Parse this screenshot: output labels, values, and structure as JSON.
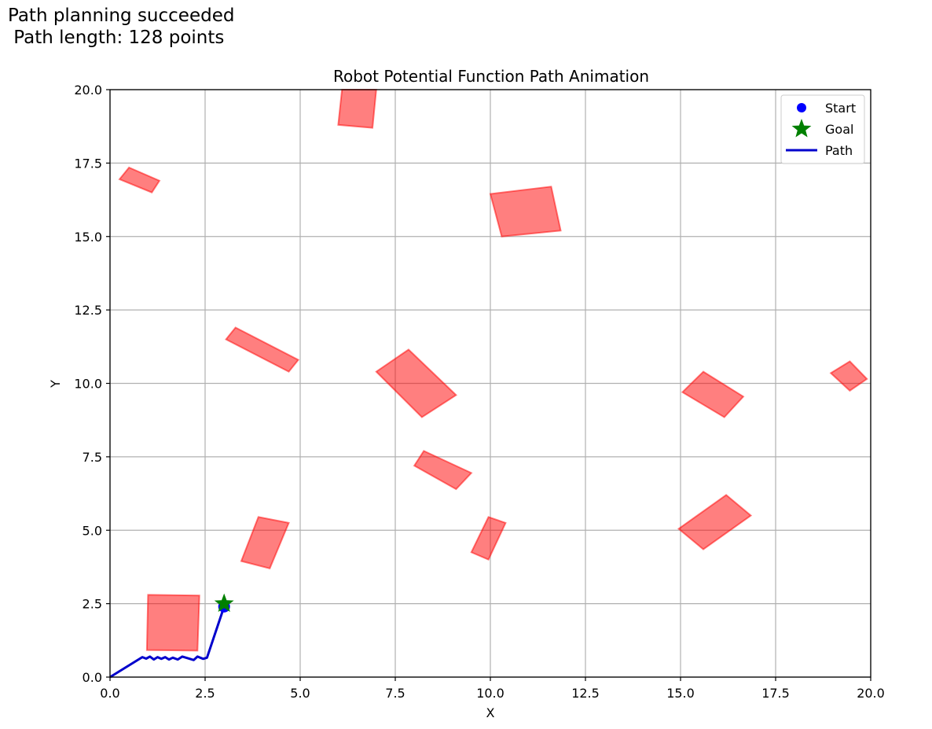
{
  "status": {
    "line1": "Path planning succeeded",
    "line2": " Path length: 128 points"
  },
  "chart_data": {
    "type": "scatter",
    "title": "Robot Potential Function Path Animation",
    "xlabel": "X",
    "ylabel": "Y",
    "xlim": [
      0,
      20
    ],
    "ylim": [
      0,
      20
    ],
    "grid": true,
    "legend_position": "top-right",
    "x_ticks": [
      "0.0",
      "2.5",
      "5.0",
      "7.5",
      "10.0",
      "12.5",
      "15.0",
      "17.5",
      "20.0"
    ],
    "y_ticks": [
      "0.0",
      "2.5",
      "5.0",
      "7.5",
      "10.0",
      "12.5",
      "15.0",
      "17.5",
      "20.0"
    ],
    "legend": [
      {
        "label": "Start",
        "marker": "circle",
        "color": "#0000ff"
      },
      {
        "label": "Goal",
        "marker": "star",
        "color": "#008000"
      },
      {
        "label": "Path",
        "marker": "line",
        "color": "#0000cc"
      }
    ],
    "start": {
      "x": 3.0,
      "y": 2.4
    },
    "goal": {
      "x": 3.0,
      "y": 2.5
    },
    "path": [
      [
        0.0,
        0.0
      ],
      [
        0.85,
        0.68
      ],
      [
        0.95,
        0.63
      ],
      [
        1.05,
        0.7
      ],
      [
        1.15,
        0.6
      ],
      [
        1.25,
        0.68
      ],
      [
        1.35,
        0.62
      ],
      [
        1.45,
        0.68
      ],
      [
        1.55,
        0.6
      ],
      [
        1.65,
        0.66
      ],
      [
        1.78,
        0.6
      ],
      [
        1.9,
        0.7
      ],
      [
        2.05,
        0.64
      ],
      [
        2.2,
        0.58
      ],
      [
        2.3,
        0.7
      ],
      [
        2.45,
        0.62
      ],
      [
        2.55,
        0.66
      ],
      [
        3.0,
        2.4
      ]
    ],
    "obstacles": [
      {
        "color": "#ff0000",
        "alpha": 0.5,
        "points": [
          [
            1.0,
            2.8
          ],
          [
            2.35,
            2.78
          ],
          [
            2.3,
            0.9
          ],
          [
            0.97,
            0.92
          ]
        ]
      },
      {
        "color": "#ff0000",
        "alpha": 0.5,
        "points": [
          [
            3.9,
            5.45
          ],
          [
            4.7,
            5.25
          ],
          [
            4.2,
            3.7
          ],
          [
            3.45,
            3.95
          ]
        ]
      },
      {
        "color": "#ff0000",
        "alpha": 0.5,
        "points": [
          [
            9.95,
            5.45
          ],
          [
            10.4,
            5.25
          ],
          [
            9.95,
            4.0
          ],
          [
            9.5,
            4.25
          ]
        ]
      },
      {
        "color": "#ff0000",
        "alpha": 0.5,
        "points": [
          [
            8.25,
            7.7
          ],
          [
            9.5,
            6.95
          ],
          [
            9.1,
            6.4
          ],
          [
            8.0,
            7.2
          ]
        ]
      },
      {
        "color": "#ff0000",
        "alpha": 0.5,
        "points": [
          [
            7.85,
            11.15
          ],
          [
            9.1,
            9.6
          ],
          [
            8.2,
            8.85
          ],
          [
            7.0,
            10.4
          ]
        ]
      },
      {
        "color": "#ff0000",
        "alpha": 0.5,
        "points": [
          [
            3.3,
            11.9
          ],
          [
            4.95,
            10.8
          ],
          [
            4.7,
            10.4
          ],
          [
            3.05,
            11.5
          ]
        ]
      },
      {
        "color": "#ff0000",
        "alpha": 0.5,
        "points": [
          [
            0.5,
            17.35
          ],
          [
            1.3,
            16.9
          ],
          [
            1.1,
            16.5
          ],
          [
            0.25,
            16.95
          ]
        ]
      },
      {
        "color": "#ff0000",
        "alpha": 0.5,
        "points": [
          [
            6.1,
            20.0
          ],
          [
            7.0,
            20.0
          ],
          [
            6.9,
            18.7
          ],
          [
            6.0,
            18.8
          ]
        ]
      },
      {
        "color": "#ff0000",
        "alpha": 0.5,
        "points": [
          [
            10.0,
            16.45
          ],
          [
            11.6,
            16.7
          ],
          [
            11.85,
            15.2
          ],
          [
            10.3,
            15.0
          ]
        ]
      },
      {
        "color": "#ff0000",
        "alpha": 0.5,
        "points": [
          [
            15.6,
            10.4
          ],
          [
            16.65,
            9.55
          ],
          [
            16.15,
            8.85
          ],
          [
            15.05,
            9.7
          ]
        ]
      },
      {
        "color": "#ff0000",
        "alpha": 0.5,
        "points": [
          [
            19.45,
            10.75
          ],
          [
            19.9,
            10.15
          ],
          [
            19.45,
            9.75
          ],
          [
            18.95,
            10.35
          ]
        ]
      },
      {
        "color": "#ff0000",
        "alpha": 0.5,
        "points": [
          [
            16.2,
            6.2
          ],
          [
            16.85,
            5.5
          ],
          [
            15.6,
            4.35
          ],
          [
            14.95,
            5.05
          ]
        ]
      }
    ]
  }
}
